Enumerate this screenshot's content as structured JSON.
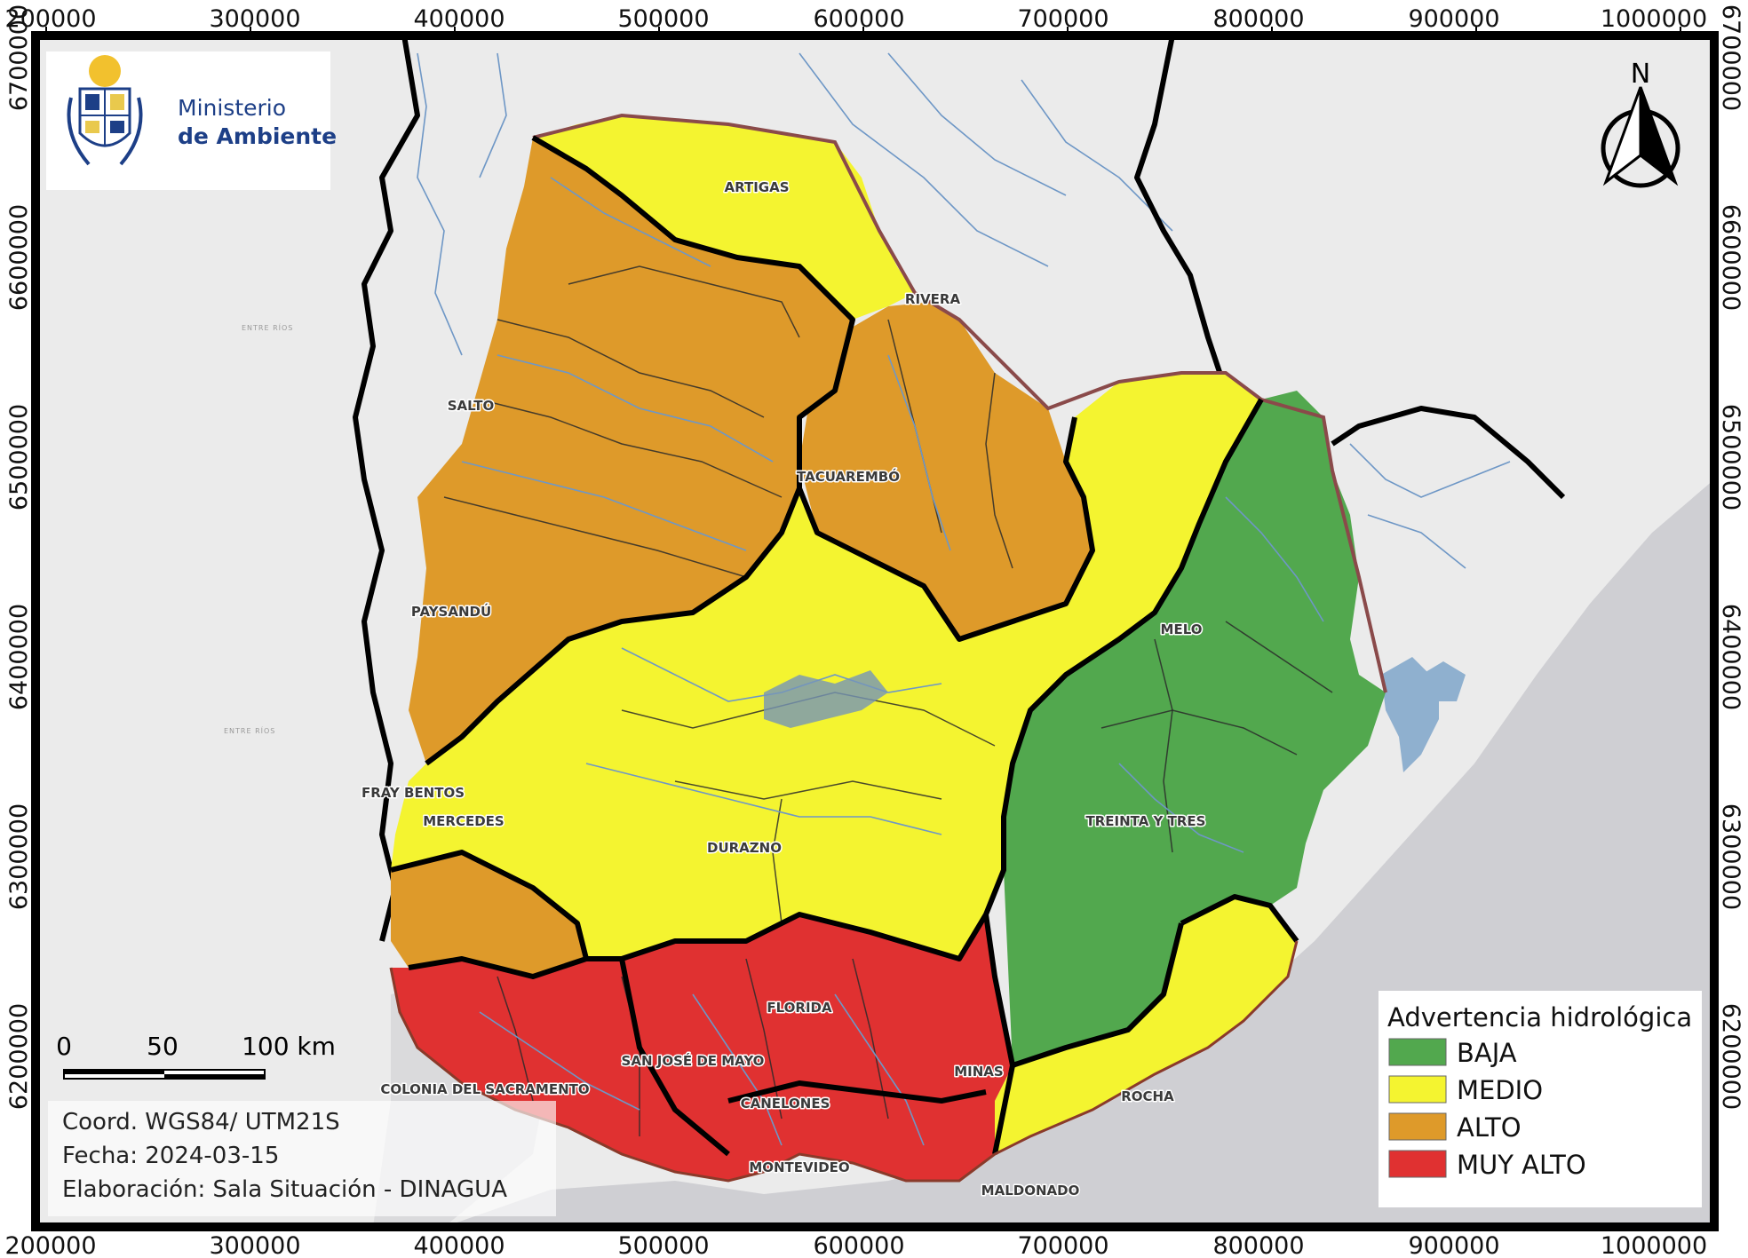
{
  "logo": {
    "line1": "Ministerio",
    "line2": "de Ambiente"
  },
  "axes": {
    "x_ticks": [
      "200000",
      "300000",
      "400000",
      "500000",
      "600000",
      "700000",
      "800000",
      "900000",
      "1000000"
    ],
    "y_ticks": [
      "6700000",
      "6600000",
      "6500000",
      "6400000",
      "6300000",
      "6200000"
    ]
  },
  "cities": {
    "artigas": "ARTIGAS",
    "rivera": "RIVERA",
    "salto": "SALTO",
    "tacuarembo": "TACUAREMBÓ",
    "paysandu": "PAYSANDÚ",
    "melo": "MELO",
    "fray_bentos": "FRAY BENTOS",
    "mercedes": "MERCEDES",
    "treinta_y_tres": "TREINTA Y TRES",
    "durazno": "DURAZNO",
    "florida": "FLORIDA",
    "san_jose": "SAN JOSÉ DE MAYO",
    "minas": "MINAS",
    "colonia": "COLONIA DEL SACRAMENTO",
    "canelones": "CANELONES",
    "rocha": "ROCHA",
    "montevideo": "MONTEVIDEO",
    "maldonado": "MALDONADO"
  },
  "regions": {
    "entre_rios_1": "ENTRE RÍOS",
    "entre_rios_2": "ENTRE RÍOS"
  },
  "north_arrow": {
    "letter": "N"
  },
  "scale_bar": {
    "labels": [
      "0",
      "50",
      "100 km"
    ]
  },
  "info": {
    "coords": "Coord. WGS84/ UTM21S",
    "date": "Fecha: 2024-03-15",
    "author": "Elaboración: Sala Situación - DINAGUA"
  },
  "legend": {
    "title": "Advertencia hidrológica",
    "items": [
      {
        "label": "BAJA",
        "color": "#52a84e"
      },
      {
        "label": "MEDIO",
        "color": "#f4f430"
      },
      {
        "label": "ALTO",
        "color": "#de9a2a"
      },
      {
        "label": "MUY ALTO",
        "color": "#e03131"
      }
    ]
  }
}
